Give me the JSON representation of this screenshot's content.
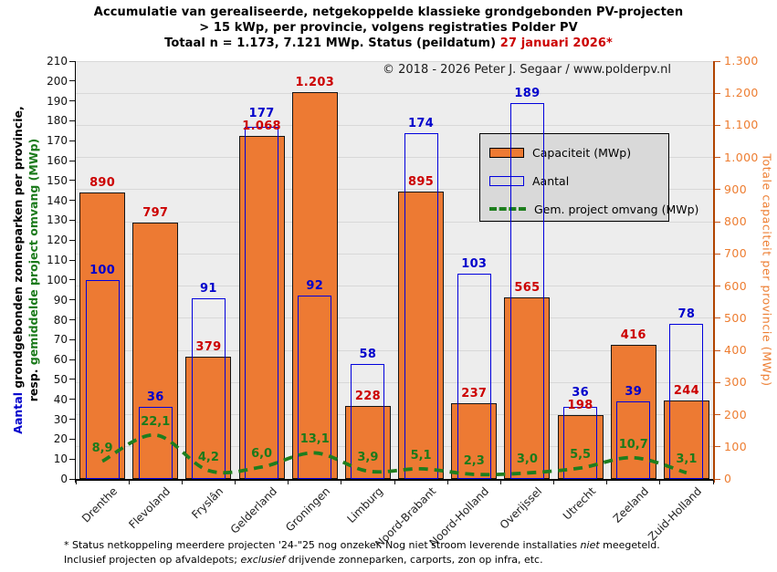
{
  "title": {
    "line1": "Accumulatie van gerealiseerde, netgekoppelde klassieke grondgebonden PV-projecten",
    "line2": "> 15 kWp, per provincie, volgens registraties Polder PV",
    "line3_black": "Totaal n = 1.173, 7.121 MWp. Status (peildatum) ",
    "line3_red": "27 januari 2026*"
  },
  "copyright": "© 2018 - 2026 Peter J. Segaar / www.polderpv.nl",
  "axes": {
    "left": {
      "title_part1_blue": "Aantal",
      "title_part1_black": " grondgebonden zonneparken per provincie,",
      "title_part2_black": "resp. ",
      "title_part2_green": "gemiddelde project omvang (MWp)"
    },
    "right": {
      "title": "Totale capaciteit per provincie (MWp)"
    }
  },
  "legend": {
    "items": [
      {
        "label": "Capaciteit (MWp)",
        "swatch": "orange-bar"
      },
      {
        "label": "Aantal",
        "swatch": "blue-outline-bar"
      },
      {
        "label": "Gem. project omvang (MWp)",
        "swatch": "green-dashed-line"
      }
    ]
  },
  "chart_data": {
    "type": "bar",
    "subtype": "combo-bar-line-two-axes",
    "categories": [
      "Drenthe",
      "Flevoland",
      "Fryslân",
      "Gelderland",
      "Groningen",
      "Limburg",
      "Noord-Brabant",
      "Noord-Holland",
      "Overijssel",
      "Utrecht",
      "Zeeland",
      "Zuid-Holland"
    ],
    "series": [
      {
        "name": "Capaciteit (MWp)",
        "type": "bar",
        "axis": "right",
        "color": "#ED7A33",
        "values": [
          890,
          797,
          379,
          1068,
          1203,
          228,
          895,
          237,
          565,
          198,
          416,
          244
        ],
        "labels": [
          "890",
          "797",
          "379",
          "1.068",
          "1.203",
          "228",
          "895",
          "237",
          "565",
          "198",
          "416",
          "244"
        ],
        "label_color": "#CC0000"
      },
      {
        "name": "Aantal",
        "type": "bar-outline",
        "axis": "left",
        "color": "#0000DD",
        "values": [
          100,
          36,
          91,
          177,
          92,
          58,
          174,
          103,
          189,
          36,
          39,
          78
        ],
        "labels": [
          "100",
          "36",
          "91",
          "177",
          "92",
          "58",
          "174",
          "103",
          "189",
          "36",
          "39",
          "78"
        ],
        "label_color": "#0000CC"
      },
      {
        "name": "Gem. project omvang (MWp)",
        "type": "dashed-line",
        "axis": "left",
        "color": "#1E7E1E",
        "values": [
          8.9,
          22.1,
          4.2,
          6.0,
          13.1,
          3.9,
          5.1,
          2.3,
          3.0,
          5.5,
          10.7,
          3.1
        ],
        "labels": [
          "8,9",
          "22,1",
          "4,2",
          "6,0",
          "13,1",
          "3,9",
          "5,1",
          "2,3",
          "3,0",
          "5,5",
          "10,7",
          "3,1"
        ],
        "label_color": "#1B7A1B"
      }
    ],
    "left_axis": {
      "min": 0,
      "max": 210,
      "step": 10,
      "ticks": [
        "0",
        "10",
        "20",
        "30",
        "40",
        "50",
        "60",
        "70",
        "80",
        "90",
        "100",
        "110",
        "120",
        "130",
        "140",
        "150",
        "160",
        "170",
        "180",
        "190",
        "200",
        "210"
      ]
    },
    "right_axis": {
      "min": 0,
      "max": 1300,
      "step": 100,
      "ticks": [
        "0",
        "100",
        "200",
        "300",
        "400",
        "500",
        "600",
        "700",
        "800",
        "900",
        "1.000",
        "1.100",
        "1.200",
        "1.300"
      ]
    },
    "grid": "horizontal-every-100-right-axis",
    "legend_position": "upper-right-inside"
  },
  "footnote": {
    "line1_a": "* Status netkoppeling meerdere projecten '24-\"25 nog onzeker. Nog niet stroom leverende installaties ",
    "line1_italic": "niet",
    "line1_b": " meegeteld.",
    "line2_a": "Inclusief projecten op afvaldepots; ",
    "line2_italic": "exclusief",
    "line2_b": " drijvende zonneparken, carports, zon op infra, etc."
  }
}
